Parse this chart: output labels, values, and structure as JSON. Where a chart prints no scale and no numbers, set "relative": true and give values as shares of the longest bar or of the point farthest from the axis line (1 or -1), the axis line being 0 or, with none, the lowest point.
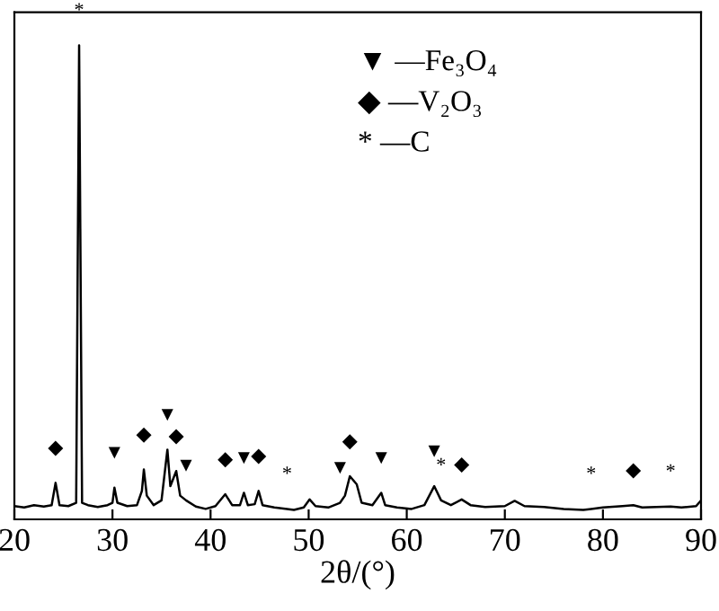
{
  "chart_data": {
    "type": "line",
    "relative": true,
    "xlabel": "2θ/(°)",
    "xlim": [
      20,
      90
    ],
    "xticks": [
      20,
      30,
      40,
      50,
      60,
      70,
      80,
      90
    ],
    "grid": false,
    "series": [
      {
        "color": "#000000",
        "x": [
          20,
          21,
          22,
          23,
          23.8,
          24.2,
          24.6,
          25.5,
          26.3,
          26.6,
          26.9,
          27.5,
          28.5,
          29.5,
          30.0,
          30.2,
          30.5,
          31.5,
          32.5,
          33.0,
          33.2,
          33.5,
          34.2,
          35.0,
          35.6,
          35.9,
          36.5,
          36.9,
          37.5,
          38.5,
          39.5,
          40.5,
          41.5,
          42.2,
          43.0,
          43.4,
          43.8,
          44.5,
          44.9,
          45.3,
          46.5,
          47.8,
          48.5,
          49.5,
          50.1,
          50.7,
          52,
          53.2,
          53.7,
          54.2,
          54.9,
          55.4,
          56.5,
          57.4,
          57.8,
          59,
          60.5,
          61.8,
          62.8,
          63.5,
          64.5,
          65.6,
          66.5,
          68,
          70,
          71,
          72,
          74,
          76,
          78,
          78.8,
          80,
          82,
          83.1,
          84,
          86.9,
          88,
          89.5,
          90
        ],
        "values": [
          0.028,
          0.025,
          0.03,
          0.027,
          0.03,
          0.077,
          0.03,
          0.028,
          0.035,
          1.0,
          0.035,
          0.03,
          0.026,
          0.03,
          0.035,
          0.067,
          0.035,
          0.028,
          0.03,
          0.06,
          0.105,
          0.05,
          0.03,
          0.04,
          0.147,
          0.07,
          0.102,
          0.05,
          0.04,
          0.027,
          0.022,
          0.028,
          0.053,
          0.03,
          0.03,
          0.056,
          0.03,
          0.032,
          0.06,
          0.03,
          0.025,
          0.022,
          0.02,
          0.025,
          0.042,
          0.028,
          0.025,
          0.035,
          0.05,
          0.091,
          0.074,
          0.035,
          0.03,
          0.056,
          0.03,
          0.025,
          0.022,
          0.03,
          0.07,
          0.04,
          0.03,
          0.042,
          0.03,
          0.026,
          0.028,
          0.039,
          0.028,
          0.026,
          0.022,
          0.02,
          0.022,
          0.025,
          0.028,
          0.03,
          0.025,
          0.027,
          0.025,
          0.028,
          0.04
        ]
      }
    ],
    "annotations": [
      "▼ —Fe₃O₄",
      "◆ —V₂O₃",
      "* —C",
      {
        "text": "▼",
        "x": 30.2,
        "y": 0.067
      },
      {
        "text": "▼",
        "x": 35.6,
        "y": 0.147
      },
      {
        "text": "▼",
        "x": 37.5,
        "y": 0.04
      },
      {
        "text": "▼",
        "x": 43.4,
        "y": 0.056
      },
      {
        "text": "▼",
        "x": 53.2,
        "y": 0.035
      },
      {
        "text": "▼",
        "x": 57.4,
        "y": 0.056
      },
      {
        "text": "▼",
        "x": 62.8,
        "y": 0.07
      },
      {
        "text": "◆",
        "x": 24.2,
        "y": 0.077
      },
      {
        "text": "◆",
        "x": 33.2,
        "y": 0.105
      },
      {
        "text": "◆",
        "x": 36.5,
        "y": 0.102
      },
      {
        "text": "◆",
        "x": 41.5,
        "y": 0.053
      },
      {
        "text": "◆",
        "x": 44.9,
        "y": 0.06
      },
      {
        "text": "◆",
        "x": 54.2,
        "y": 0.091
      },
      {
        "text": "◆",
        "x": 65.6,
        "y": 0.042
      },
      {
        "text": "◆",
        "x": 83.1,
        "y": 0.03
      },
      {
        "text": "*",
        "x": 26.6,
        "y": 1.0
      },
      {
        "text": "*",
        "x": 47.8,
        "y": 0.022
      },
      {
        "text": "*",
        "x": 63.5,
        "y": 0.04
      },
      {
        "text": "*",
        "x": 78.8,
        "y": 0.022
      },
      {
        "text": "*",
        "x": 86.9,
        "y": 0.027
      }
    ]
  }
}
